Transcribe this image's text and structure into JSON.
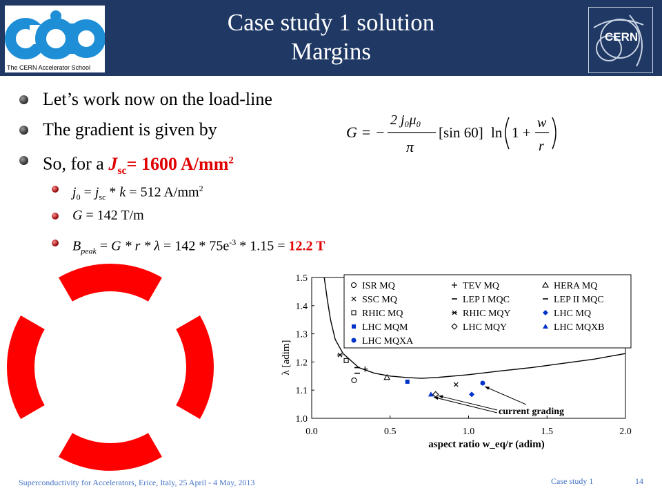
{
  "header": {
    "title_line1": "Case study 1 solution",
    "title_line2": "Margins",
    "left_logo_caption": "The CERN Accelerator School",
    "right_logo_text": "CERN"
  },
  "bullets": {
    "b1": "Let’s work now on the load-line",
    "b2": "The gradient is given by",
    "b3_prefix": "So, for a ",
    "b3_J": "J",
    "b3_sub": "sc",
    "b3_value": "= 1600 A/mm",
    "b3_sup": "2"
  },
  "subbullets": {
    "s1_j0": "j",
    "s1_j0_sub": "0",
    "s1_eq": " = ",
    "s1_jsc": "j",
    "s1_jsc_sub": "sc",
    "s1_rest": " * ",
    "s1_k": "k",
    "s1_val": " = 512 A/mm",
    "s1_sup": "2",
    "s2": "G",
    "s2_val": " = 142 T/m",
    "s3_B": "B",
    "s3_sub": "peak",
    "s3_eq": " = ",
    "s3_expr": "G * r * λ",
    "s3_val": " = 142 * 75e",
    "s3_exp": "-3",
    "s3_tail": " * 1.15 = ",
    "s3_result": "12.2 T"
  },
  "formula": {
    "lhs": "G = −",
    "num": "2 j₀μ₀",
    "den": "π",
    "sin": "[sin 60]",
    "ln": "ln",
    "one_plus": "1 +",
    "frac_num": "w",
    "frac_den": "r"
  },
  "colors": {
    "header_bg": "#1f3864",
    "accent_red": "#e00000",
    "footer_blue": "#4472c4",
    "coil_red": "#ff0000",
    "cas_blue": "#1e8fd6"
  },
  "chart_data": {
    "type": "scatter",
    "title": "",
    "xlabel": "aspect ratio w_eq/r   (adim)",
    "ylabel": "λ [adim]",
    "xlim": [
      0.0,
      2.0
    ],
    "ylim": [
      1.0,
      1.5
    ],
    "x_ticks": [
      "0.0",
      "0.5",
      "1.0",
      "1.5",
      "2.0"
    ],
    "y_ticks": [
      "1.0",
      "1.1",
      "1.2",
      "1.3",
      "1.4",
      "1.5"
    ],
    "annotation": "current grading",
    "curve": [
      [
        0.08,
        1.5
      ],
      [
        0.1,
        1.42
      ],
      [
        0.12,
        1.35
      ],
      [
        0.15,
        1.28
      ],
      [
        0.2,
        1.23
      ],
      [
        0.3,
        1.18
      ],
      [
        0.4,
        1.16
      ],
      [
        0.5,
        1.15
      ],
      [
        0.6,
        1.145
      ],
      [
        0.7,
        1.142
      ],
      [
        0.8,
        1.145
      ],
      [
        1.0,
        1.155
      ],
      [
        1.2,
        1.168
      ],
      [
        1.4,
        1.18
      ],
      [
        1.6,
        1.195
      ],
      [
        1.8,
        1.21
      ],
      [
        2.0,
        1.23
      ]
    ],
    "series": [
      {
        "name": "ISR MQ",
        "marker": "circle-open",
        "color": "#000000",
        "points": [
          [
            0.27,
            1.135
          ]
        ]
      },
      {
        "name": "TEV MQ",
        "marker": "plus",
        "color": "#000000",
        "points": [
          [
            0.34,
            1.175
          ]
        ]
      },
      {
        "name": "HERA MQ",
        "marker": "triangle-open",
        "color": "#000000",
        "points": [
          [
            0.48,
            1.145
          ]
        ]
      },
      {
        "name": "SSC MQ",
        "marker": "x",
        "color": "#000000",
        "points": [
          [
            0.92,
            1.12
          ]
        ]
      },
      {
        "name": "LEP I MQC",
        "marker": "dash",
        "color": "#000000",
        "points": [
          [
            0.29,
            1.16
          ]
        ]
      },
      {
        "name": "LEP II MQC",
        "marker": "dash",
        "color": "#000000",
        "points": [
          [
            0.29,
            1.18
          ]
        ]
      },
      {
        "name": "RHIC MQ",
        "marker": "square-open",
        "color": "#000000",
        "points": [
          [
            0.22,
            1.205
          ]
        ]
      },
      {
        "name": "RHIC MQY",
        "marker": "asterisk",
        "color": "#000000",
        "points": [
          [
            0.18,
            1.225
          ]
        ]
      },
      {
        "name": "LHC MQ",
        "marker": "diamond-filled",
        "color": "#0033cc",
        "points": [
          [
            1.02,
            1.085
          ]
        ]
      },
      {
        "name": "LHC MQM",
        "marker": "square-filled",
        "color": "#0033cc",
        "points": [
          [
            0.61,
            1.13
          ]
        ]
      },
      {
        "name": "LHC MQY",
        "marker": "diamond-open",
        "color": "#000000",
        "points": [
          [
            0.79,
            1.085
          ]
        ]
      },
      {
        "name": "LHC MQXB",
        "marker": "triangle-filled",
        "color": "#0033cc",
        "points": [
          [
            0.76,
            1.085
          ]
        ]
      },
      {
        "name": "LHC MQXA",
        "marker": "circle-filled",
        "color": "#0033cc",
        "points": [
          [
            1.09,
            1.125
          ]
        ]
      }
    ],
    "legend_columns": [
      [
        "ISR MQ",
        "SSC MQ",
        "RHIC MQ",
        "LHC MQM",
        "LHC MQXA"
      ],
      [
        "TEV MQ",
        "LEP I MQC",
        "RHIC MQY",
        "LHC MQY"
      ],
      [
        "HERA MQ",
        "LEP II MQC",
        "LHC MQ",
        "LHC MQXB"
      ]
    ],
    "legend_position": "top-right"
  },
  "footer": {
    "left": "Superconductivity for Accelerators, Erice, Italy, 25 April - 4 May, 2013",
    "center": "Case study 1",
    "page": "14"
  }
}
